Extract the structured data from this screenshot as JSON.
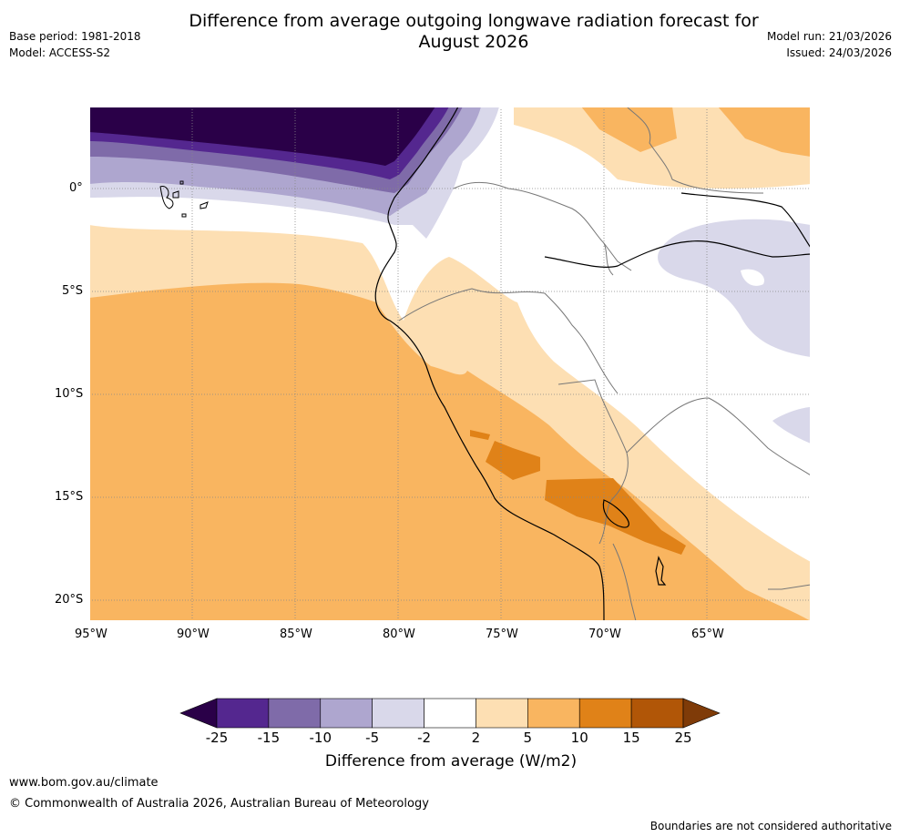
{
  "header": {
    "title_line1": "Difference from average outgoing longwave radiation forecast for",
    "title_line2": "August 2026",
    "base_period": "Base period: 1981-2018",
    "model": "Model: ACCESS-S2",
    "model_run": "Model run: 21/03/2026",
    "issued": "Issued: 24/03/2026"
  },
  "map": {
    "lat_labels": [
      "0°",
      "5°S",
      "10°S",
      "15°S",
      "20°S"
    ],
    "lon_labels": [
      "95°W",
      "90°W",
      "85°W",
      "80°W",
      "75°W",
      "70°W",
      "65°W"
    ]
  },
  "colorbar": {
    "ticks": [
      "-25",
      "-15",
      "-10",
      "-5",
      "-2",
      "2",
      "5",
      "10",
      "15",
      "25"
    ],
    "colors": [
      "#2a0048",
      "#54278f",
      "#7f6ba9",
      "#aea6cf",
      "#d9d8ea",
      "#ffffff",
      "#fddfb3",
      "#f9b560",
      "#e08218",
      "#b15607",
      "#7f3b08"
    ],
    "label": "Difference from average (W/m2)"
  },
  "footer": {
    "url": "www.bom.gov.au/climate",
    "copyright": "© Commonwealth of Australia 2026, Australian Bureau of Meteorology",
    "disclaimer": "Boundaries are not considered authoritative"
  }
}
